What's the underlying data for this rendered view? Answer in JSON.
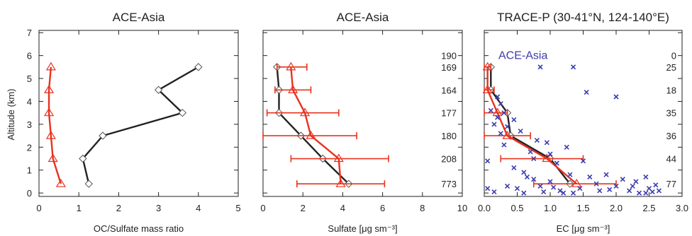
{
  "colors": {
    "black_series": "#222222",
    "red_series": "#e8321e",
    "blue_points": "#3b3bb0",
    "axis": "#222222"
  },
  "ylabel": "Altitude (km)",
  "y_ticks": [
    "0",
    "1",
    "2",
    "3",
    "4",
    "5",
    "6",
    "7"
  ],
  "chart_data": [
    {
      "type": "line",
      "title": "ACE-Asia",
      "xlabel": "OC/Sulfate mass ratio",
      "ylabel": "Altitude (km)",
      "xlim": [
        0,
        5
      ],
      "ylim": [
        -0.15,
        7.1
      ],
      "x_ticks": [
        "0",
        "1",
        "2",
        "3",
        "4",
        "5"
      ],
      "series": [
        {
          "marker": "diamond",
          "color": "black",
          "x": [
            1.25,
            1.1,
            1.6,
            3.6,
            3.0,
            4.0
          ],
          "y": [
            0.4,
            1.5,
            2.5,
            3.5,
            4.5,
            5.5
          ]
        },
        {
          "marker": "triangle",
          "color": "red",
          "x": [
            0.55,
            0.35,
            0.3,
            0.25,
            0.25,
            0.3
          ],
          "y": [
            0.4,
            1.5,
            2.5,
            3.5,
            4.5,
            5.5
          ]
        }
      ]
    },
    {
      "type": "line",
      "title": "ACE-Asia",
      "xlabel": "Sulfate [μg sm⁻³]",
      "xlim": [
        0,
        10
      ],
      "ylim": [
        -0.15,
        7.1
      ],
      "x_ticks": [
        "0",
        "2",
        "4",
        "6",
        "8",
        "10"
      ],
      "right_labels": [
        "190",
        "169",
        "164",
        "177",
        "180",
        "208",
        "773"
      ],
      "right_label_y": [
        6.0,
        5.5,
        4.5,
        3.5,
        2.5,
        1.5,
        0.4
      ],
      "series": [
        {
          "marker": "diamond",
          "color": "black",
          "x": [
            4.3,
            3.0,
            1.9,
            0.8,
            0.8,
            0.7
          ],
          "y": [
            0.4,
            1.5,
            2.5,
            3.5,
            4.5,
            5.5
          ]
        },
        {
          "marker": "triangle",
          "color": "red",
          "x": [
            3.9,
            3.8,
            2.4,
            2.1,
            1.5,
            1.4
          ],
          "x_err_low": [
            1.7,
            1.4,
            0.0,
            0.2,
            0.6,
            0.7
          ],
          "x_err_high": [
            6.1,
            6.3,
            4.7,
            3.8,
            2.4,
            2.2
          ],
          "y": [
            0.4,
            1.5,
            2.5,
            3.5,
            4.5,
            5.5
          ]
        }
      ]
    },
    {
      "type": "scatter",
      "title": "TRACE-P (30-41°N, 124-140°E)",
      "annotation": "ACE-Asia",
      "xlabel": "EC [μg sm⁻³]",
      "xlim": [
        0,
        3.0
      ],
      "ylim": [
        -0.15,
        7.1
      ],
      "x_ticks": [
        "0.0",
        "0.5",
        "1.0",
        "1.5",
        "2.0",
        "2.5",
        "3.0"
      ],
      "right_labels": [
        "0",
        "25",
        "18",
        "35",
        "36",
        "44",
        "77"
      ],
      "right_label_y": [
        6.0,
        5.5,
        4.5,
        3.5,
        2.5,
        1.5,
        0.4
      ],
      "series": [
        {
          "marker": "diamond",
          "color": "black",
          "x": [
            1.3,
            1.0,
            0.4,
            0.35,
            0.1,
            0.1
          ],
          "y": [
            0.4,
            1.5,
            2.5,
            3.5,
            4.5,
            5.5
          ]
        },
        {
          "marker": "triangle",
          "color": "red",
          "x": [
            1.4,
            0.95,
            0.35,
            0.2,
            0.05,
            0.05
          ],
          "x_err_low": [
            0.75,
            0.25,
            0.0,
            0.0,
            0.0,
            0.0
          ],
          "x_err_high": [
            2.0,
            1.5,
            0.7,
            0.35,
            0.15,
            0.1
          ],
          "y": [
            0.4,
            1.5,
            2.5,
            3.5,
            4.5,
            5.5
          ]
        },
        {
          "marker": "x",
          "color": "blue",
          "x": [
            0.85,
            1.35,
            1.55,
            2.0,
            0.2,
            0.25,
            0.1,
            0.3,
            0.2,
            0.45,
            0.15,
            0.35,
            0.55,
            0.25,
            0.8,
            0.95,
            1.25,
            0.3,
            0.7,
            1.0,
            0.75,
            1.1,
            0.45,
            1.5,
            0.05,
            0.6,
            0.65,
            0.75,
            1.0,
            1.3,
            1.6,
            1.85,
            2.1,
            2.3,
            2.45,
            0.35,
            0.5,
            0.85,
            1.15,
            1.45,
            1.7,
            2.0,
            2.2,
            2.5,
            2.6,
            0.9,
            1.2,
            1.75,
            2.35,
            2.55,
            0.05,
            0.15,
            0.6,
            1.05,
            1.35,
            1.9,
            2.25,
            2.45,
            2.65
          ],
          "y": [
            5.5,
            5.5,
            4.4,
            4.2,
            4.2,
            3.9,
            3.6,
            3.5,
            3.3,
            3.2,
            3.0,
            2.9,
            2.7,
            2.6,
            2.3,
            2.2,
            2.0,
            2.1,
            1.8,
            1.7,
            1.5,
            1.3,
            1.1,
            1.4,
            1.4,
            0.9,
            0.7,
            0.6,
            0.5,
            0.8,
            0.7,
            0.8,
            0.6,
            0.5,
            0.7,
            0.3,
            0.2,
            0.3,
            0.1,
            0.2,
            0.4,
            0.3,
            0.1,
            0.2,
            0.35,
            0.05,
            0.0,
            0.1,
            0.0,
            0.05,
            0.2,
            0.05,
            0.0,
            0.25,
            0.0,
            0.15,
            0.3,
            0.0,
            0.1
          ]
        }
      ]
    }
  ]
}
